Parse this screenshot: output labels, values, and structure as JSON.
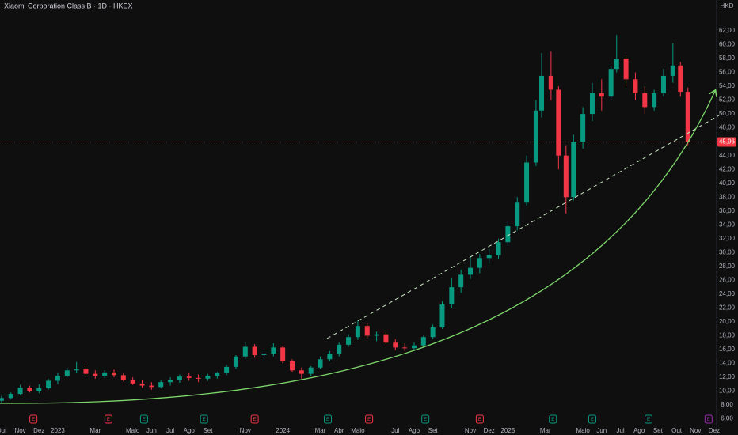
{
  "chart_data": {
    "type": "candlestick",
    "title": "Xiaomi Corporation Class B · 1D · HKEX",
    "currency": "HKD",
    "up_color": "#089981",
    "down_color": "#f23645",
    "x": [
      0,
      0.5,
      1,
      1.5,
      2,
      2.5,
      3,
      3.5,
      4,
      4.5,
      5,
      5.5,
      6,
      6.5,
      7,
      7.5,
      8,
      8.5,
      9,
      9.5,
      10,
      10.5,
      11,
      11.5,
      12,
      12.5,
      13,
      13.5,
      14,
      14.5,
      15,
      15.5,
      16,
      16.5,
      17,
      17.5,
      18,
      18.5,
      19,
      19.5,
      20,
      20.5,
      21,
      21.5,
      22,
      22.5,
      23,
      23.5,
      24,
      24.5,
      25,
      25.5,
      26,
      26.5,
      27,
      27.5,
      28,
      28.5,
      28.8,
      29.3,
      29.7,
      30.1,
      30.5,
      31,
      31.5,
      32,
      32.5,
      32.8,
      33.3,
      33.8,
      34.3,
      34.8,
      35.3,
      35.8,
      36.2,
      36.6
    ],
    "open": [
      8.6,
      9.0,
      9.6,
      10.5,
      10.0,
      10.4,
      11.5,
      12.2,
      13.0,
      13.2,
      12.5,
      12.2,
      12.7,
      12.3,
      11.6,
      11.1,
      10.8,
      10.6,
      11.3,
      11.6,
      12.1,
      11.9,
      11.8,
      12.2,
      12.6,
      13.5,
      15.0,
      16.4,
      15.2,
      15.4,
      16.3,
      14.3,
      13.0,
      12.5,
      13.4,
      14.6,
      15.4,
      16.7,
      17.8,
      19.4,
      18.0,
      18.2,
      17.0,
      16.3,
      16.2,
      16.6,
      17.8,
      19.2,
      22.5,
      25.0,
      26.8,
      27.8,
      29.2,
      29.6,
      31.5,
      33.8,
      37.2,
      43.0,
      50.5,
      55.5,
      53.5,
      44.0,
      38.0,
      46.0,
      50.0,
      53.0,
      52.5,
      56.5,
      58.0,
      55.0,
      53.0,
      51.0,
      53.0,
      55.5,
      57.0,
      53.2
    ],
    "high": [
      9.3,
      9.8,
      10.9,
      10.8,
      11.0,
      11.8,
      12.6,
      13.4,
      14.2,
      13.6,
      13.0,
      13.0,
      13.1,
      12.6,
      12.0,
      11.6,
      11.3,
      11.6,
      12.0,
      12.4,
      12.6,
      12.4,
      12.5,
      12.8,
      13.8,
      15.2,
      17.0,
      16.8,
      15.8,
      16.9,
      16.5,
      14.6,
      13.4,
      13.6,
      15.0,
      15.8,
      17.0,
      18.2,
      20.2,
      19.8,
      18.6,
      18.5,
      17.5,
      16.9,
      17.0,
      18.0,
      19.6,
      23.0,
      26.3,
      27.5,
      29.5,
      29.8,
      30.5,
      32.0,
      34.5,
      38.0,
      44.0,
      52.0,
      58.8,
      59.0,
      54.0,
      45.5,
      47.0,
      51.0,
      54.5,
      55.0,
      57.0,
      61.4,
      58.5,
      56.0,
      54.0,
      53.5,
      56.5,
      60.2,
      57.5,
      53.8
    ],
    "low": [
      8.2,
      8.8,
      9.4,
      9.8,
      9.7,
      10.2,
      11.0,
      12.0,
      12.6,
      12.2,
      11.8,
      11.9,
      12.0,
      11.4,
      10.9,
      10.5,
      10.2,
      10.4,
      10.8,
      11.2,
      11.5,
      11.3,
      11.5,
      11.8,
      12.3,
      13.2,
      14.6,
      14.8,
      14.4,
      15.0,
      14.0,
      12.8,
      11.8,
      12.2,
      13.2,
      14.3,
      15.0,
      16.4,
      17.4,
      17.6,
      17.2,
      16.8,
      15.9,
      15.8,
      15.8,
      16.4,
      17.5,
      19.0,
      22.0,
      24.2,
      26.2,
      27.0,
      28.4,
      29.0,
      31.0,
      33.2,
      36.8,
      42.5,
      49.5,
      52.0,
      42.0,
      35.6,
      37.5,
      45.0,
      49.0,
      50.5,
      52.0,
      56.0,
      54.0,
      52.0,
      50.0,
      50.5,
      52.5,
      54.5,
      52.5,
      45.5
    ],
    "close": [
      9.0,
      9.6,
      10.5,
      10.0,
      10.4,
      11.5,
      12.2,
      13.0,
      13.2,
      12.5,
      12.2,
      12.7,
      12.3,
      11.6,
      11.1,
      10.8,
      10.6,
      11.3,
      11.6,
      12.1,
      11.9,
      11.8,
      12.2,
      12.6,
      13.5,
      15.0,
      16.4,
      15.2,
      15.4,
      16.3,
      14.3,
      13.0,
      12.5,
      13.4,
      14.6,
      15.4,
      16.7,
      17.8,
      19.4,
      18.0,
      18.2,
      17.0,
      16.3,
      16.2,
      16.6,
      17.8,
      19.2,
      22.5,
      25.0,
      26.8,
      27.8,
      29.2,
      29.6,
      31.5,
      33.8,
      37.2,
      43.0,
      50.5,
      55.5,
      53.5,
      44.0,
      38.0,
      46.0,
      50.0,
      53.0,
      52.5,
      56.5,
      58.0,
      55.0,
      53.0,
      51.0,
      53.0,
      55.5,
      57.0,
      53.2,
      45.96
    ],
    "last_price": {
      "value": 45.96,
      "label": "45,96"
    },
    "xlim": [
      -0.08,
      38.13
    ],
    "xticks": [
      {
        "value": 0,
        "label": "Out"
      },
      {
        "value": 1,
        "label": "Nov"
      },
      {
        "value": 2,
        "label": "Dez"
      },
      {
        "value": 3,
        "label": "2023"
      },
      {
        "value": 5,
        "label": "Mar"
      },
      {
        "value": 7,
        "label": "Maio"
      },
      {
        "value": 8,
        "label": "Jun"
      },
      {
        "value": 9,
        "label": "Jul"
      },
      {
        "value": 10,
        "label": "Ago"
      },
      {
        "value": 11,
        "label": "Set"
      },
      {
        "value": 13,
        "label": "Nov"
      },
      {
        "value": 15,
        "label": "2024"
      },
      {
        "value": 17,
        "label": "Mar"
      },
      {
        "value": 18,
        "label": "Abr"
      },
      {
        "value": 19,
        "label": "Maio"
      },
      {
        "value": 21,
        "label": "Jul"
      },
      {
        "value": 22,
        "label": "Ago"
      },
      {
        "value": 23,
        "label": "Set"
      },
      {
        "value": 25,
        "label": "Nov"
      },
      {
        "value": 26,
        "label": "Dez"
      },
      {
        "value": 27,
        "label": "2025"
      },
      {
        "value": 29,
        "label": "Mar"
      },
      {
        "value": 31,
        "label": "Maio"
      },
      {
        "value": 32,
        "label": "Jun"
      },
      {
        "value": 33,
        "label": "Jul"
      },
      {
        "value": 34,
        "label": "Ago"
      },
      {
        "value": 35,
        "label": "Set"
      },
      {
        "value": 36,
        "label": "Out"
      },
      {
        "value": 37,
        "label": "Nov"
      },
      {
        "value": 38,
        "label": "Dez"
      }
    ],
    "ylim": [
      5.04,
      66.45
    ],
    "yticks": [
      {
        "value": 6,
        "label": "6,00"
      },
      {
        "value": 8,
        "label": "8,00"
      },
      {
        "value": 10,
        "label": "10,00"
      },
      {
        "value": 12,
        "label": "12,00"
      },
      {
        "value": 14,
        "label": "14,00"
      },
      {
        "value": 16,
        "label": "16,00"
      },
      {
        "value": 18,
        "label": "18,00"
      },
      {
        "value": 20,
        "label": "20,00"
      },
      {
        "value": 22,
        "label": "22,00"
      },
      {
        "value": 24,
        "label": "24,00"
      },
      {
        "value": 26,
        "label": "26,00"
      },
      {
        "value": 28,
        "label": "28,00"
      },
      {
        "value": 30,
        "label": "30,00"
      },
      {
        "value": 32,
        "label": "32,00"
      },
      {
        "value": 34,
        "label": "34,00"
      },
      {
        "value": 36,
        "label": "36,00"
      },
      {
        "value": 38,
        "label": "38,00"
      },
      {
        "value": 40,
        "label": "40,00"
      },
      {
        "value": 42,
        "label": "42,00"
      },
      {
        "value": 44,
        "label": "44,00"
      },
      {
        "value": 46,
        "label": "46,00"
      },
      {
        "value": 48,
        "label": "48,00"
      },
      {
        "value": 50,
        "label": "50,00"
      },
      {
        "value": 52,
        "label": "52,00"
      },
      {
        "value": 54,
        "label": "54,00"
      },
      {
        "value": 56,
        "label": "56,00"
      },
      {
        "value": 58,
        "label": "58,00"
      },
      {
        "value": 60,
        "label": "60,00"
      },
      {
        "value": 62,
        "label": "62,00"
      }
    ],
    "grid": false,
    "events": [
      {
        "x": 1.7,
        "label": "E",
        "color": "#f23645"
      },
      {
        "x": 5.7,
        "label": "E",
        "color": "#f23645"
      },
      {
        "x": 7.6,
        "label": "E",
        "color": "#089981"
      },
      {
        "x": 10.8,
        "label": "E",
        "color": "#089981"
      },
      {
        "x": 13.5,
        "label": "E",
        "color": "#f23645"
      },
      {
        "x": 17.4,
        "label": "E",
        "color": "#089981"
      },
      {
        "x": 19.6,
        "label": "E",
        "color": "#f23645"
      },
      {
        "x": 22.6,
        "label": "E",
        "color": "#089981"
      },
      {
        "x": 25.5,
        "label": "E",
        "color": "#f23645"
      },
      {
        "x": 29.4,
        "label": "E",
        "color": "#089981"
      },
      {
        "x": 31.5,
        "label": "E",
        "color": "#089981"
      },
      {
        "x": 34.5,
        "label": "E",
        "color": "#089981"
      },
      {
        "x": 37.7,
        "label": "E",
        "color": "#9c27b0"
      }
    ]
  }
}
